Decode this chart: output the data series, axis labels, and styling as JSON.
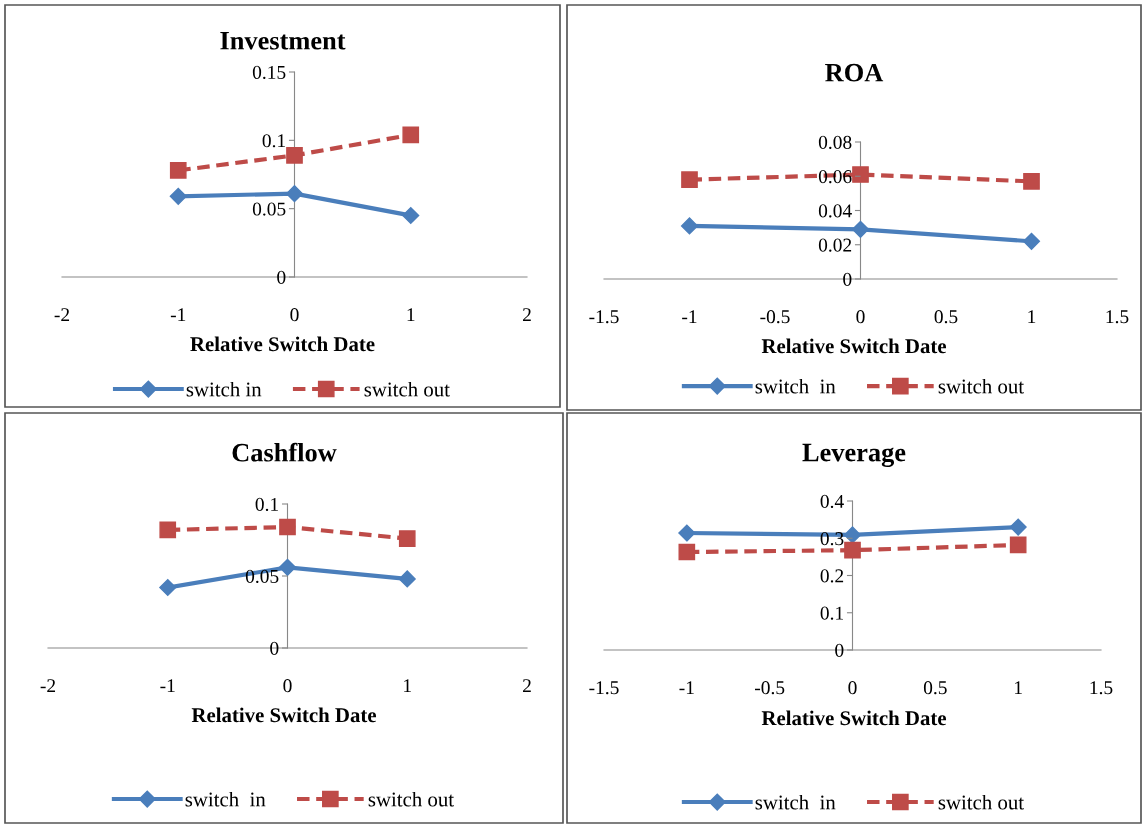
{
  "chart_data": [
    {
      "type": "line",
      "title": "Investment",
      "xlabel": "Relative Switch Date",
      "x": [
        -1,
        0,
        1
      ],
      "xlim": [
        -2,
        2
      ],
      "xticks": [
        -2,
        -1,
        0,
        1,
        2
      ],
      "ylim": [
        0,
        0.15
      ],
      "yticks": [
        0,
        0.05,
        0.1,
        0.15
      ],
      "legend": "bottom",
      "grid": false,
      "series": [
        {
          "name": "switch in",
          "color": "#4a7ebb",
          "values": [
            0.059,
            0.061,
            0.045
          ],
          "marker": "diamond",
          "line_style": "solid"
        },
        {
          "name": "switch out",
          "color": "#be4b48",
          "values": [
            0.078,
            0.089,
            0.104
          ],
          "marker": "square",
          "line_style": "dashed"
        }
      ]
    },
    {
      "type": "line",
      "title": "ROA",
      "xlabel": "Relative Switch Date",
      "x": [
        -1,
        0,
        1
      ],
      "xlim": [
        -1.5,
        1.5
      ],
      "xticks": [
        -1.5,
        -1,
        -0.5,
        0,
        0.5,
        1,
        1.5
      ],
      "ylim": [
        0,
        0.08
      ],
      "yticks": [
        0,
        0.02,
        0.04,
        0.06,
        0.08
      ],
      "legend": "bottom",
      "grid": false,
      "series": [
        {
          "name": "switch  in",
          "color": "#4a7ebb",
          "values": [
            0.031,
            0.029,
            0.022
          ],
          "marker": "diamond",
          "line_style": "solid"
        },
        {
          "name": "switch out",
          "color": "#be4b48",
          "values": [
            0.058,
            0.061,
            0.057
          ],
          "marker": "square",
          "line_style": "dashed"
        }
      ]
    },
    {
      "type": "line",
      "title": "Cashflow",
      "xlabel": "Relative Switch Date",
      "x": [
        -1,
        0,
        1
      ],
      "xlim": [
        -2,
        2
      ],
      "xticks": [
        -2,
        -1,
        0,
        1,
        2
      ],
      "ylim": [
        0,
        0.1
      ],
      "yticks": [
        0,
        0.05,
        0.1
      ],
      "legend": "bottom",
      "grid": false,
      "series": [
        {
          "name": "switch  in",
          "color": "#4a7ebb",
          "values": [
            0.042,
            0.056,
            0.048
          ],
          "marker": "diamond",
          "line_style": "solid"
        },
        {
          "name": "switch out",
          "color": "#be4b48",
          "values": [
            0.082,
            0.084,
            0.076
          ],
          "marker": "square",
          "line_style": "dashed"
        }
      ]
    },
    {
      "type": "line",
      "title": "Leverage",
      "xlabel": "Relative Switch Date",
      "x": [
        -1,
        0,
        1
      ],
      "xlim": [
        -1.5,
        1.5
      ],
      "xticks": [
        -1.5,
        -1,
        -0.5,
        0,
        0.5,
        1,
        1.5
      ],
      "ylim": [
        0,
        0.4
      ],
      "yticks": [
        0,
        0.1,
        0.2,
        0.3,
        0.4
      ],
      "legend": "bottom",
      "grid": false,
      "series": [
        {
          "name": "switch  in",
          "color": "#4a7ebb",
          "values": [
            0.314,
            0.309,
            0.33
          ],
          "marker": "diamond",
          "line_style": "solid"
        },
        {
          "name": "switch out",
          "color": "#be4b48",
          "values": [
            0.263,
            0.268,
            0.282
          ],
          "marker": "square",
          "line_style": "dashed"
        }
      ]
    }
  ]
}
